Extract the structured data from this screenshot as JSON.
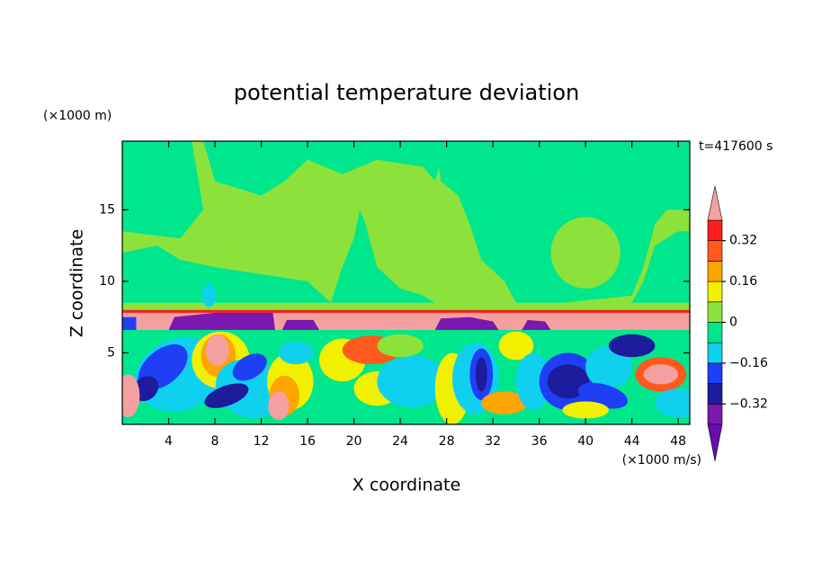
{
  "chart_data": {
    "type": "contour",
    "title": "potential temperature deviation",
    "x_label": "X coordinate",
    "y_label": "Z coordinate",
    "x_unit": "(×1000 m/s)",
    "y_unit": "(×1000 m)",
    "annotation": "t=417600 s",
    "xlim": [
      0,
      49
    ],
    "ylim": [
      0,
      19.8
    ],
    "xticks": [
      4,
      8,
      12,
      16,
      20,
      24,
      28,
      32,
      36,
      40,
      44,
      48
    ],
    "yticks": [
      5,
      10,
      15
    ],
    "colorbar": {
      "levels": [
        -0.4,
        -0.32,
        -0.24,
        -0.16,
        -0.08,
        0,
        0.08,
        0.16,
        0.24,
        0.32,
        0.4
      ],
      "ticks": [
        {
          "value": -0.32,
          "label": "−0.32"
        },
        {
          "value": -0.16,
          "label": "−0.16"
        },
        0,
        0.16,
        0.32
      ],
      "colors": [
        "#6a0dad",
        "#7c17b0",
        "#1c1c9c",
        "#1f3ff5",
        "#10d0f0",
        "#00e68c",
        "#8ce23a",
        "#f0f000",
        "#ffa500",
        "#ff5a1e",
        "#ff1e1e",
        "#f5a0a0"
      ]
    }
  }
}
